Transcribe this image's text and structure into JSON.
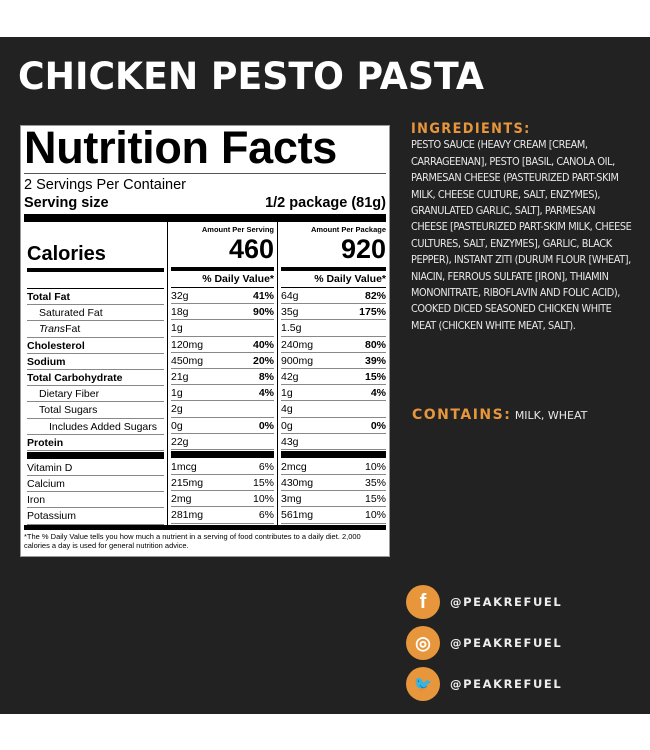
{
  "title": "CHICKEN PESTO PASTA",
  "label": {
    "heading": "Nutrition Facts",
    "servings": "2 Servings Per Container",
    "serving_size_label": "Serving size",
    "serving_size_value": "1/2 package (81g)",
    "calories_label": "Calories",
    "per_serving_header": "Amount Per Serving",
    "per_package_header": "Amount Per Package",
    "calories_serving": "460",
    "calories_package": "920",
    "dv_header": "% Daily Value*",
    "rows": [
      {
        "name": "Total Fat",
        "bold": true,
        "indent": 0,
        "s_amt": "32g",
        "s_dv": "41%",
        "p_amt": "64g",
        "p_dv": "82%"
      },
      {
        "name": "Saturated Fat",
        "bold": false,
        "indent": 1,
        "s_amt": "18g",
        "s_dv": "90%",
        "p_amt": "35g",
        "p_dv": "175%"
      },
      {
        "name": "Trans Fat",
        "bold": false,
        "indent": 1,
        "italic_prefix": "Trans",
        "s_amt": "1g",
        "s_dv": "",
        "p_amt": "1.5g",
        "p_dv": ""
      },
      {
        "name": "Cholesterol",
        "bold": true,
        "indent": 0,
        "s_amt": "120mg",
        "s_dv": "40%",
        "p_amt": "240mg",
        "p_dv": "80%"
      },
      {
        "name": "Sodium",
        "bold": true,
        "indent": 0,
        "s_amt": "450mg",
        "s_dv": "20%",
        "p_amt": "900mg",
        "p_dv": "39%"
      },
      {
        "name": "Total Carbohydrate",
        "bold": true,
        "indent": 0,
        "s_amt": "21g",
        "s_dv": "8%",
        "p_amt": "42g",
        "p_dv": "15%"
      },
      {
        "name": "Dietary Fiber",
        "bold": false,
        "indent": 1,
        "s_amt": "1g",
        "s_dv": "4%",
        "p_amt": "1g",
        "p_dv": "4%"
      },
      {
        "name": "Total Sugars",
        "bold": false,
        "indent": 1,
        "s_amt": "2g",
        "s_dv": "",
        "p_amt": "4g",
        "p_dv": ""
      },
      {
        "name": "Includes Added Sugars",
        "bold": false,
        "indent": 2,
        "s_amt": "0g",
        "s_dv": "0%",
        "p_amt": "0g",
        "p_dv": "0%"
      },
      {
        "name": "Protein",
        "bold": true,
        "indent": 0,
        "s_amt": "22g",
        "s_dv": "",
        "p_amt": "43g",
        "p_dv": ""
      }
    ],
    "vitamins": [
      {
        "name": "Vitamin D",
        "s_amt": "1mcg",
        "s_dv": "6%",
        "p_amt": "2mcg",
        "p_dv": "10%"
      },
      {
        "name": "Calcium",
        "s_amt": "215mg",
        "s_dv": "15%",
        "p_amt": "430mg",
        "p_dv": "35%"
      },
      {
        "name": "Iron",
        "s_amt": "2mg",
        "s_dv": "10%",
        "p_amt": "3mg",
        "p_dv": "15%"
      },
      {
        "name": "Potassium",
        "s_amt": "281mg",
        "s_dv": "6%",
        "p_amt": "561mg",
        "p_dv": "10%"
      }
    ],
    "footnote": "*The % Daily Value tells you how much a nutrient in a serving of food contributes to a daily diet. 2,000 calories a day is used for general nutrition advice."
  },
  "ingredients": {
    "heading": "INGREDIENTS:",
    "text": "PESTO SAUCE (HEAVY CREAM [CREAM, CARRAGEENAN], PESTO [BASIL, CANOLA OIL, PARMESAN CHEESE (PASTEURIZED PART-SKIM MILK, CHEESE CULTURE, SALT, ENZYMES), GRANULATED GARLIC, SALT], PARMESAN CHEESE [PASTEURIZED PART-SKIM MILK, CHEESE CULTURES, SALT, ENZYMES], GARLIC, BLACK PEPPER), INSTANT ZITI (DURUM FLOUR [WHEAT], NIACIN, FERROUS SULFATE [IRON], THIAMIN MONONITRATE, RIBOFLAVIN AND FOLIC ACID), COOKED DICED SEASONED CHICKEN WHITE MEAT (CHICKEN WHITE MEAT, SALT)."
  },
  "contains": {
    "heading": "CONTAINS:",
    "text": "MILK, WHEAT"
  },
  "social": [
    {
      "icon": "facebook-icon",
      "glyph": "f",
      "handle": "@PEAKREFUEL"
    },
    {
      "icon": "instagram-icon",
      "glyph": "◎",
      "handle": "@PEAKREFUEL"
    },
    {
      "icon": "twitter-icon",
      "glyph": "🐦",
      "handle": "@PEAKREFUEL"
    }
  ],
  "colors": {
    "background": "#222222",
    "accent": "#e8963c"
  }
}
